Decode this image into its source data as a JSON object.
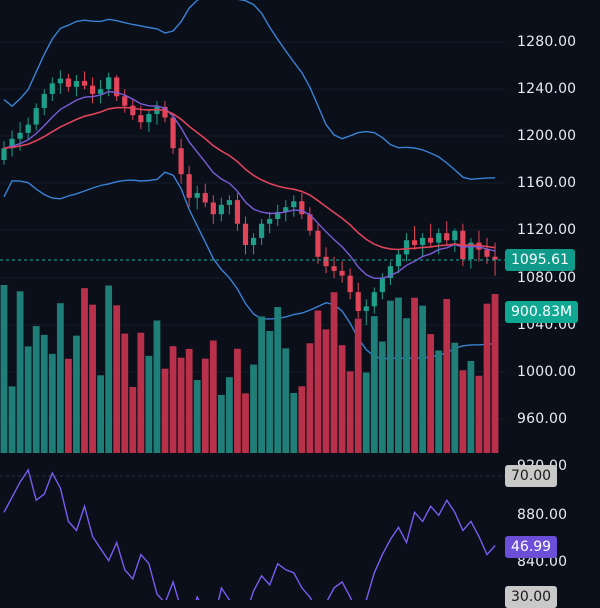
{
  "price_axis": {
    "ticks": [
      "1280.00",
      "1240.00",
      "1200.00",
      "1160.00",
      "1120.00",
      "1080.00",
      "1040.00",
      "1000.00",
      "960.00",
      "920.00",
      "880.00",
      "840.00"
    ]
  },
  "rsi_axis": {
    "upper_label": "70.00",
    "lower_label": "30.00"
  },
  "tags": {
    "last_price": "1095.61",
    "volume": "900.83M",
    "rsi_value": "46.99"
  },
  "colors": {
    "background": "#0a0f1a",
    "up": "#1f9e8a",
    "down": "#e2455a",
    "volume_up": "#1f7f78",
    "volume_down": "#b8304a",
    "bollinger": "#3b82d6",
    "ma_fast": "#7b5cd6",
    "ma_slow": "#e0445a",
    "rsi_line": "#7b5cf0",
    "price_line": "#1fb39c"
  },
  "chart_data": {
    "type": "candlestick",
    "price_range": [
      900,
      1300
    ],
    "candles": [
      [
        1180,
        1196,
        1176,
        1190
      ],
      [
        1190,
        1205,
        1183,
        1198
      ],
      [
        1198,
        1212,
        1188,
        1203
      ],
      [
        1203,
        1216,
        1197,
        1210
      ],
      [
        1210,
        1228,
        1205,
        1224
      ],
      [
        1224,
        1240,
        1218,
        1236
      ],
      [
        1236,
        1250,
        1230,
        1245
      ],
      [
        1245,
        1256,
        1236,
        1249
      ],
      [
        1249,
        1253,
        1238,
        1242
      ],
      [
        1242,
        1252,
        1234,
        1247
      ],
      [
        1247,
        1255,
        1240,
        1243
      ],
      [
        1243,
        1250,
        1228,
        1236
      ],
      [
        1236,
        1248,
        1228,
        1240
      ],
      [
        1240,
        1254,
        1234,
        1250
      ],
      [
        1250,
        1252,
        1230,
        1234
      ],
      [
        1234,
        1240,
        1220,
        1226
      ],
      [
        1226,
        1232,
        1214,
        1218
      ],
      [
        1218,
        1226,
        1206,
        1212
      ],
      [
        1212,
        1222,
        1204,
        1219
      ],
      [
        1219,
        1230,
        1210,
        1225
      ],
      [
        1225,
        1230,
        1212,
        1216
      ],
      [
        1216,
        1220,
        1185,
        1190
      ],
      [
        1190,
        1198,
        1160,
        1168
      ],
      [
        1168,
        1175,
        1140,
        1148
      ],
      [
        1148,
        1158,
        1138,
        1152
      ],
      [
        1152,
        1160,
        1140,
        1144
      ],
      [
        1144,
        1150,
        1126,
        1134
      ],
      [
        1134,
        1148,
        1128,
        1142
      ],
      [
        1142,
        1150,
        1134,
        1146
      ],
      [
        1146,
        1152,
        1120,
        1126
      ],
      [
        1126,
        1132,
        1100,
        1108
      ],
      [
        1108,
        1118,
        1100,
        1114
      ],
      [
        1114,
        1130,
        1108,
        1126
      ],
      [
        1126,
        1136,
        1118,
        1130
      ],
      [
        1130,
        1142,
        1124,
        1136
      ],
      [
        1136,
        1146,
        1128,
        1140
      ],
      [
        1140,
        1150,
        1132,
        1145
      ],
      [
        1145,
        1152,
        1130,
        1134
      ],
      [
        1134,
        1140,
        1116,
        1120
      ],
      [
        1120,
        1126,
        1092,
        1098
      ],
      [
        1098,
        1106,
        1084,
        1090
      ],
      [
        1090,
        1098,
        1080,
        1086
      ],
      [
        1086,
        1094,
        1076,
        1082
      ],
      [
        1082,
        1088,
        1062,
        1068
      ],
      [
        1068,
        1076,
        1046,
        1052
      ],
      [
        1052,
        1062,
        1040,
        1056
      ],
      [
        1056,
        1072,
        1050,
        1068
      ],
      [
        1068,
        1084,
        1062,
        1080
      ],
      [
        1080,
        1094,
        1074,
        1090
      ],
      [
        1090,
        1104,
        1084,
        1100
      ],
      [
        1100,
        1118,
        1094,
        1112
      ],
      [
        1112,
        1124,
        1104,
        1108
      ],
      [
        1108,
        1118,
        1098,
        1114
      ],
      [
        1114,
        1126,
        1106,
        1110
      ],
      [
        1110,
        1122,
        1100,
        1118
      ],
      [
        1118,
        1128,
        1108,
        1112
      ],
      [
        1112,
        1122,
        1102,
        1120
      ],
      [
        1120,
        1126,
        1090,
        1096
      ],
      [
        1096,
        1114,
        1088,
        1110
      ],
      [
        1110,
        1120,
        1094,
        1104
      ],
      [
        1104,
        1114,
        1092,
        1098
      ],
      [
        1098,
        1110,
        1082,
        1095.61
      ]
    ],
    "rsi": [
      58,
      63,
      68,
      72,
      62,
      64,
      71,
      66,
      55,
      52,
      60,
      50,
      46,
      42,
      48,
      39,
      36,
      44,
      41,
      31,
      28,
      35,
      26,
      22,
      30,
      25,
      21,
      33,
      29,
      26,
      24,
      32,
      37,
      34,
      41,
      39,
      38,
      33,
      30,
      25,
      28,
      33,
      35,
      30,
      24,
      29,
      38,
      44,
      49,
      53,
      48,
      58,
      55,
      60,
      57,
      62,
      58,
      52,
      55,
      50,
      44,
      46.99
    ]
  }
}
